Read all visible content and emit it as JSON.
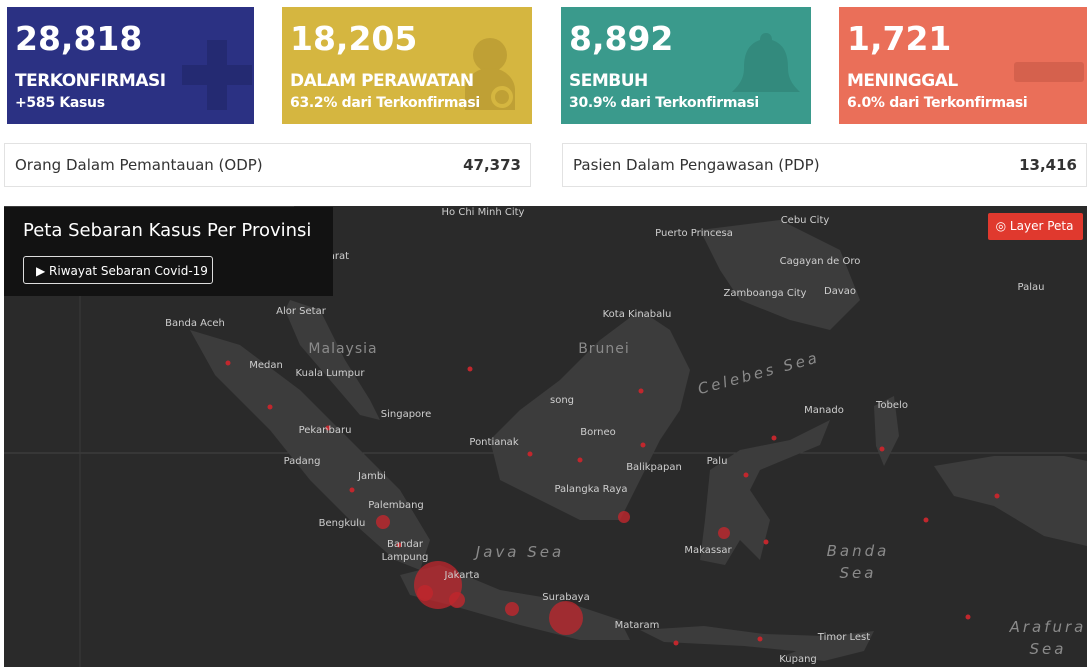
{
  "stats": [
    {
      "value": "28,818",
      "label": "TERKONFIRMASI",
      "sub": "+585 Kasus"
    },
    {
      "value": "18,205",
      "label": "DALAM PERAWATAN",
      "sub": "63.2% dari Terkonfirmasi"
    },
    {
      "value": "8,892",
      "label": "SEMBUH",
      "sub": "30.9% dari Terkonfirmasi"
    },
    {
      "value": "1,721",
      "label": "MENINGGAL",
      "sub": "6.0% dari Terkonfirmasi"
    }
  ],
  "monitoring": [
    {
      "label": "Orang Dalam Pemantauan (ODP)",
      "value": "47,373"
    },
    {
      "label": "Pasien Dalam Pengawasan (PDP)",
      "value": "13,416"
    }
  ],
  "map": {
    "title": "Peta Sebaran Kasus Per Provinsi",
    "history_button": "Riwayat Sebaran Covid-19",
    "layer_button": "Layer Peta",
    "places": [
      "Ho Chi Minh City",
      "Cebu City",
      "Puerto Princesa",
      "Nakhon Si Thammarat",
      "Cagayan de Oro",
      "Zamboanga City",
      "Davao",
      "Palau",
      "Alor Setar",
      "Banda Aceh",
      "Kota Kinabalu",
      "Malaysia",
      "Brunei",
      "Medan",
      "Kuala Lumpur",
      "Celebes Sea",
      "Manado",
      "Tobelo",
      "Singapore",
      "song",
      "Pekanbaru",
      "Borneo",
      "Pontianak",
      "Padang",
      "Palu",
      "Balikpapan",
      "Jambi",
      "Palangka Raya",
      "Palembang",
      "Bengkulu",
      "Bandar Lampung",
      "Java Sea",
      "Makassar",
      "Banda Sea",
      "Jakarta",
      "Surabaya",
      "Mataram",
      "Timor Lest",
      "Arafura Sea",
      "Kupang"
    ]
  }
}
